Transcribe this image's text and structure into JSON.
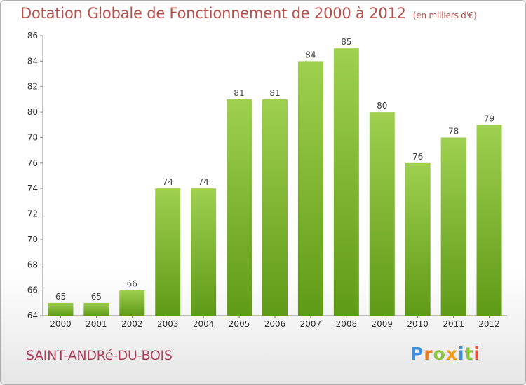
{
  "header": {
    "title": "Dotation Globale de Fonctionnement de 2000 à 2012",
    "unit": "(en milliers d'€)"
  },
  "footer": {
    "commune": "SAINT-ANDRé-DU-BOIS",
    "logo": [
      "P",
      "r",
      "o",
      "x",
      "i",
      "t",
      "i"
    ]
  },
  "colors": {
    "bar_top": "#9fd04f",
    "bar_bottom": "#5f9a16",
    "title": "#b5504b",
    "commune": "#b0435d"
  },
  "chart_data": {
    "type": "bar",
    "title": "Dotation Globale de Fonctionnement de 2000 à 2012",
    "subtitle": "(en milliers d'€)",
    "xlabel": "",
    "ylabel": "",
    "categories": [
      "2000",
      "2001",
      "2002",
      "2003",
      "2004",
      "2005",
      "2006",
      "2007",
      "2008",
      "2009",
      "2010",
      "2011",
      "2012"
    ],
    "values": [
      65,
      65,
      66,
      74,
      74,
      81,
      81,
      84,
      85,
      80,
      76,
      78,
      79
    ],
    "ylim": [
      64,
      86
    ],
    "yticks": [
      64,
      66,
      68,
      70,
      72,
      74,
      76,
      78,
      80,
      82,
      84,
      86
    ],
    "grid": false,
    "data_labels": true
  }
}
